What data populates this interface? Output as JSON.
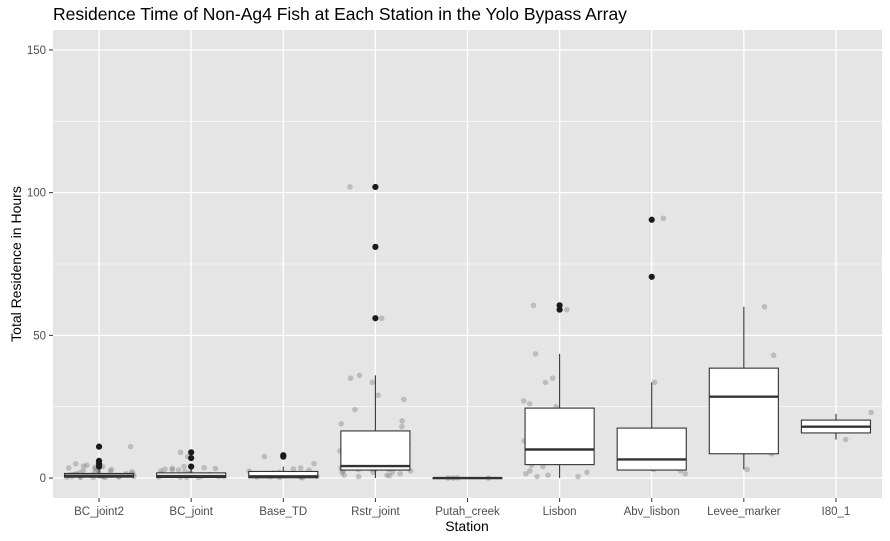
{
  "chart_data": {
    "type": "boxplot",
    "title": "Residence Time of Non-Ag4 Fish at Each Station in the Yolo Bypass Array",
    "xlabel": "Station",
    "ylabel": "Total Residence in Hours",
    "ylim": [
      -7,
      157
    ],
    "yticks": [
      0,
      50,
      100,
      150
    ],
    "grid": true,
    "panel_background": "#e5e5e5",
    "grid_color": "#ffffff",
    "box_fill": "#ffffff",
    "box_line_color": "#333333",
    "outlier_color": "#1a1a1a",
    "jitter_color": "#7f7f7f",
    "categories": [
      "BC_joint2",
      "BC_joint",
      "Base_TD",
      "Rstr_joint",
      "Putah_creek",
      "Lisbon",
      "Abv_lisbon",
      "Levee_marker",
      "I80_1"
    ],
    "boxes": [
      {
        "station": "BC_joint2",
        "whisker_low": 0,
        "q1": 0.3,
        "median": 0.8,
        "q3": 1.6,
        "whisker_high": 3,
        "outliers": [
          4,
          5,
          6,
          11
        ]
      },
      {
        "station": "BC_joint",
        "whisker_low": 0,
        "q1": 0.2,
        "median": 0.7,
        "q3": 1.8,
        "whisker_high": 3,
        "outliers": [
          4,
          7,
          9
        ]
      },
      {
        "station": "Base_TD",
        "whisker_low": 0,
        "q1": 0.1,
        "median": 0.6,
        "q3": 2.3,
        "whisker_high": 4,
        "outliers": [
          7.5,
          8
        ]
      },
      {
        "station": "Rstr_joint",
        "whisker_low": 0,
        "q1": 2.8,
        "median": 4.2,
        "q3": 16.5,
        "whisker_high": 36,
        "outliers": [
          56,
          81,
          102
        ]
      },
      {
        "station": "Putah_creek",
        "whisker_low": 0,
        "q1": 0,
        "median": 0,
        "q3": 0,
        "whisker_high": 0,
        "outliers": []
      },
      {
        "station": "Lisbon",
        "whisker_low": 0,
        "q1": 4.7,
        "median": 10,
        "q3": 24.5,
        "whisker_high": 43.5,
        "outliers": [
          59,
          60.5
        ]
      },
      {
        "station": "Abv_lisbon",
        "whisker_low": 2.5,
        "q1": 2.8,
        "median": 6.5,
        "q3": 17.5,
        "whisker_high": 33.5,
        "outliers": [
          70.5,
          90.5
        ]
      },
      {
        "station": "Levee_marker",
        "whisker_low": 3,
        "q1": 8.5,
        "median": 28.5,
        "q3": 38.5,
        "whisker_high": 60,
        "outliers": []
      },
      {
        "station": "I80_1",
        "whisker_low": 13.5,
        "q1": 15.8,
        "median": 18,
        "q3": 20.3,
        "whisker_high": 22.5,
        "outliers": []
      }
    ],
    "points": [
      {
        "station": "BC_joint2",
        "values": [
          5.5,
          0.5,
          1.2,
          0.3,
          2.1,
          0.8,
          3.5,
          1.5,
          0.2,
          1.0,
          4.2,
          0.6,
          2.4,
          0.9,
          1.8,
          0.4,
          3.0,
          1.1,
          0.7,
          2.8,
          5.0,
          0.3,
          11,
          1.6,
          0.5,
          3.8,
          2.2,
          1.3,
          0.2,
          4.0,
          0.9,
          2.6,
          1.4,
          0.6,
          3.2,
          1.9,
          0.8,
          4.5,
          1.0,
          0.4
        ]
      },
      {
        "station": "BC_joint",
        "values": [
          9,
          0.3,
          2.5,
          1.0,
          3.4,
          0.5,
          1.8,
          2.9,
          0.2,
          4.0,
          1.2,
          0.7,
          3.1,
          0.9,
          7.5,
          1.5,
          0.4,
          2.2,
          3.6,
          1.1,
          0.6,
          2.8,
          0.3,
          1.7,
          0.8,
          3.3
        ]
      },
      {
        "station": "Base_TD",
        "values": [
          0.2,
          2.0,
          0.8,
          7.5,
          3.5,
          0.4,
          1.5,
          0.1,
          2.8,
          0.6,
          5.0,
          1.1,
          0.3,
          3.2,
          0.9,
          2.4,
          0.5,
          1.8
        ]
      },
      {
        "station": "Rstr_joint",
        "values": [
          24,
          10,
          3,
          2,
          0.5,
          12,
          9.5,
          5,
          4,
          3.2,
          8,
          2.5,
          33.5,
          20,
          56,
          2,
          6,
          15,
          27.5,
          3,
          19,
          35,
          4,
          0.8,
          1,
          18,
          6.5,
          11,
          8,
          2,
          4.5,
          3.5,
          29,
          7.5,
          1.5,
          102,
          3,
          2.5,
          36,
          5,
          1
        ]
      },
      {
        "station": "Putah_creek",
        "values": [
          0.1,
          0.0,
          0.0,
          0.0
        ]
      },
      {
        "station": "Lisbon",
        "values": [
          60.5,
          43.5,
          27,
          6,
          2.5,
          35,
          4.5,
          10,
          22,
          13,
          0.5,
          25,
          8,
          1,
          17,
          6.5,
          23,
          4,
          15,
          10.5,
          2,
          26,
          19.5,
          0.5,
          33.5,
          1.5,
          59,
          14,
          7
        ]
      },
      {
        "station": "Abv_lisbon",
        "values": [
          33.5,
          5,
          3,
          12.5,
          9.5,
          2.5,
          91,
          6,
          8,
          4,
          7.5,
          1.5
        ]
      },
      {
        "station": "Levee_marker",
        "values": [
          8.5,
          34,
          9,
          28.5,
          60,
          43,
          3
        ]
      },
      {
        "station": "I80_1",
        "values": [
          23,
          13.5
        ]
      }
    ]
  }
}
